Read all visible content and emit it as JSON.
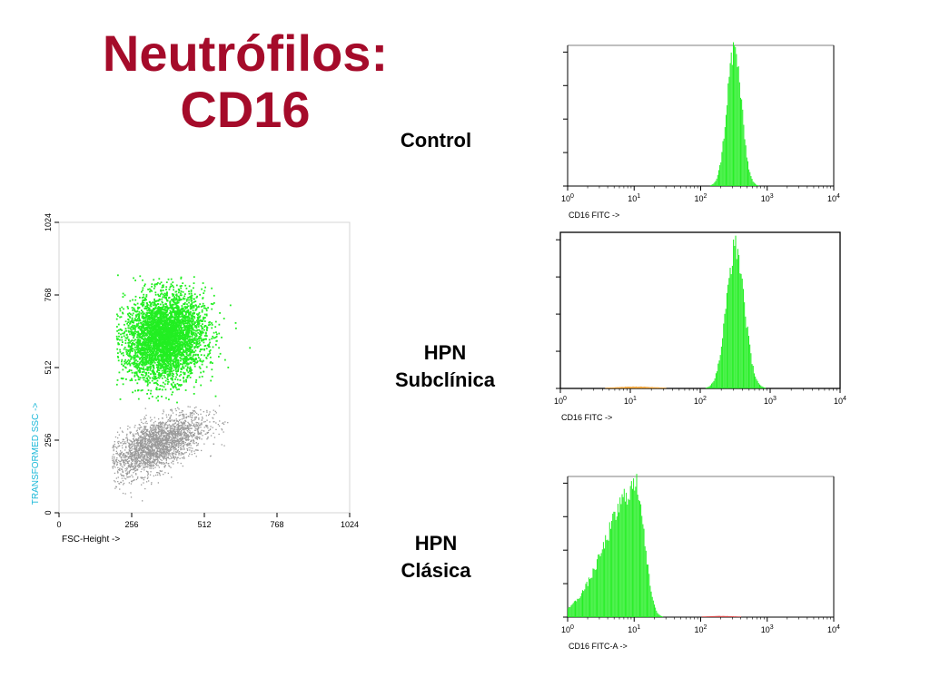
{
  "slide": {
    "title_line1": "Neutrófilos:",
    "title_line2": "CD16",
    "label_control": "Control",
    "label_subclinica_1": "HPN",
    "label_subclinica_2": "Subclínica",
    "label_clasica_1": "HPN",
    "label_clasica_2": "Clásica"
  },
  "colors": {
    "title": "#a50b2a",
    "neutrophils": "#22ee22",
    "other_cells": "#9a9a9a",
    "ssc_label": "#1ab8d8",
    "events_orange": "#f0a030",
    "events_red": "#e04040"
  },
  "chart_data": [
    {
      "type": "scatter",
      "xlabel": "FSC-Height ->",
      "ylabel": "TRANSFORMED SSC ->",
      "xlim": [
        0,
        1024
      ],
      "ylim": [
        0,
        1024
      ],
      "xticks": [
        "0",
        "256",
        "512",
        "768",
        "1024"
      ],
      "yticks": [
        "0",
        "256",
        "512",
        "768",
        "1024"
      ],
      "series": [
        {
          "population": "neutrophils",
          "color": "#22ee22",
          "center": [
            370,
            620
          ],
          "spread": [
            70,
            75
          ],
          "range_x": [
            200,
            680
          ],
          "range_y": [
            380,
            850
          ]
        },
        {
          "population": "other",
          "color": "#9a9a9a",
          "center": [
            340,
            240
          ],
          "spread": [
            85,
            55
          ],
          "range_x": [
            185,
            600
          ],
          "range_y": [
            10,
            380
          ]
        }
      ]
    },
    {
      "type": "bar",
      "xlabel": "CD16 FITC ->",
      "xscale": "log",
      "xlim": [
        1,
        10000
      ],
      "xticks": [
        "10^0",
        "10^1",
        "10^2",
        "10^3",
        "10^4"
      ],
      "histogram": [
        {
          "color": "#22ee22",
          "peak_x": 320,
          "log_sd": 0.11,
          "peak_height": 0.97
        }
      ]
    },
    {
      "type": "bar",
      "xlabel": "CD16 FITC ->",
      "xscale": "log",
      "xlim": [
        1,
        10000
      ],
      "xticks": [
        "10^0",
        "10^1",
        "10^2",
        "10^3",
        "10^4"
      ],
      "histogram": [
        {
          "color": "#22ee22",
          "peak_x": 320,
          "log_sd": 0.13,
          "peak_height": 0.9
        },
        {
          "color": "#f0a030",
          "peak_x": 12,
          "log_sd": 0.3,
          "peak_height": 0.012
        }
      ]
    },
    {
      "type": "bar",
      "xlabel": "CD16 FITC-A ->",
      "xscale": "log",
      "xlim": [
        1,
        10000
      ],
      "xticks": [
        "10^0",
        "10^1",
        "10^2",
        "10^3",
        "10^4"
      ],
      "histogram": [
        {
          "color": "#22ee22",
          "peak_x": 11,
          "log_sd_left": 0.45,
          "log_sd_right": 0.12,
          "peak_height": 0.93
        },
        {
          "color": "#e04040",
          "peak_x": 200,
          "log_sd": 0.25,
          "peak_height": 0.008
        }
      ]
    }
  ]
}
